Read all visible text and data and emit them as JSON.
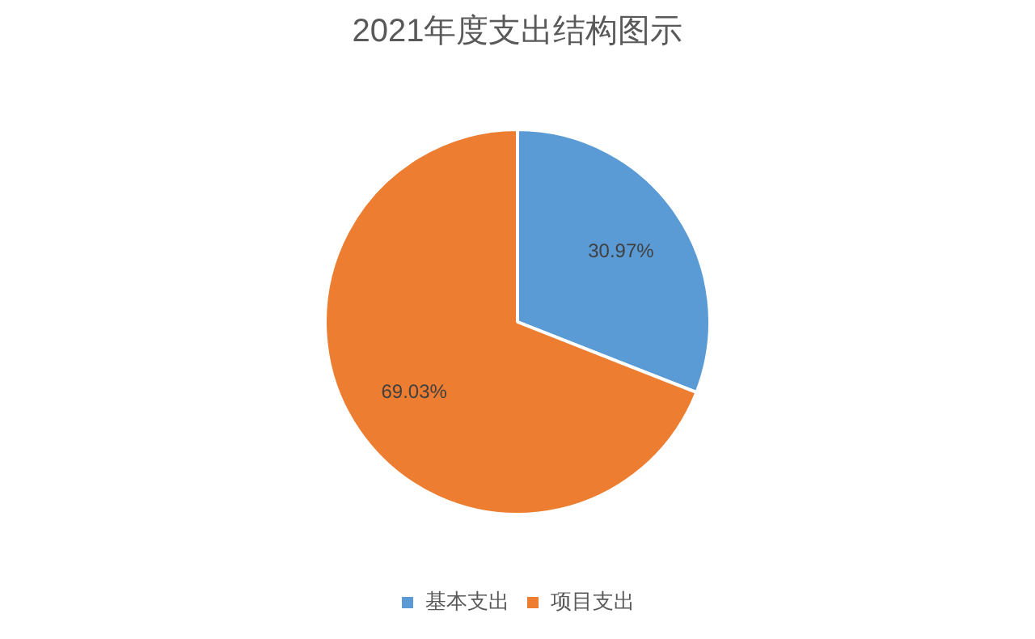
{
  "chart_data": {
    "type": "pie",
    "title": "2021年度支出结构图示",
    "categories": [
      "基本支出",
      "项目支出"
    ],
    "values": [
      30.97,
      69.03
    ],
    "colors": [
      "#5b9bd5",
      "#ed7d31"
    ],
    "value_labels": [
      "30.97%",
      "69.03%"
    ],
    "legend": "bottom"
  }
}
